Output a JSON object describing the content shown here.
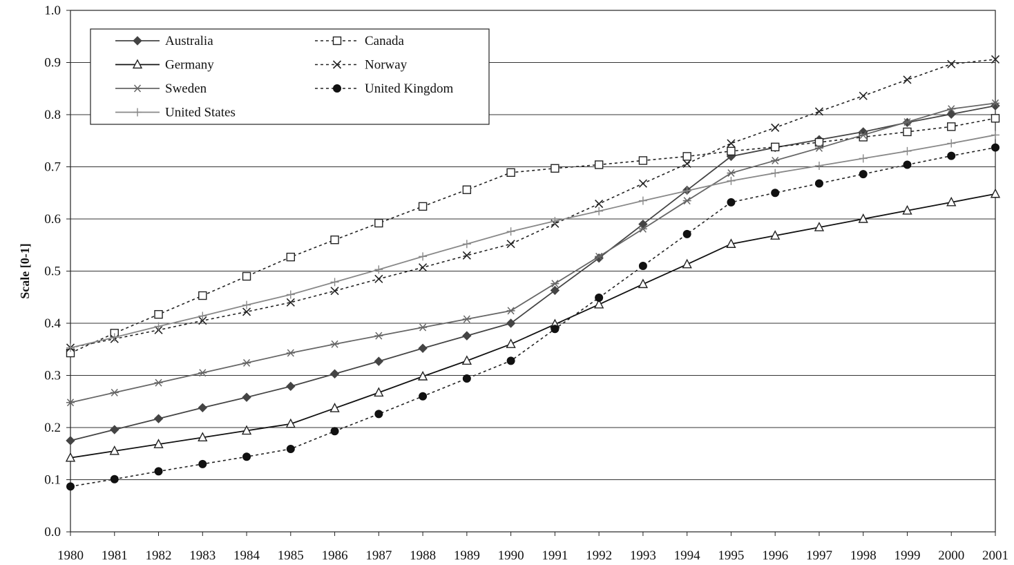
{
  "chart_data": {
    "type": "line",
    "title": "",
    "xlabel": "",
    "ylabel": "Scale [0-1]",
    "x": [
      1980,
      1981,
      1982,
      1983,
      1984,
      1985,
      1986,
      1987,
      1988,
      1989,
      1990,
      1991,
      1992,
      1993,
      1994,
      1995,
      1996,
      1997,
      1998,
      1999,
      2000,
      2001
    ],
    "x_tick_labels": [
      "1980",
      "1981",
      "1982",
      "1983",
      "1984",
      "1985",
      "1986",
      "1987",
      "1988",
      "1989",
      "1990",
      "1991",
      "1992",
      "1993",
      "1994",
      "1995",
      "1996",
      "1997",
      "1998",
      "1999",
      "2000",
      "2001"
    ],
    "ylim": [
      0,
      1
    ],
    "y_tick_labels": [
      "0.0",
      "0.1",
      "0.2",
      "0.3",
      "0.4",
      "0.5",
      "0.6",
      "0.7",
      "0.8",
      "0.9",
      "1.0"
    ],
    "grid": "horizontal",
    "legend_position": "top-left",
    "series": [
      {
        "name": "Australia",
        "color": "#444444",
        "line_style": "solid",
        "marker": "diamond",
        "values": [
          0.175,
          0.196,
          0.217,
          0.238,
          0.258,
          0.279,
          0.303,
          0.327,
          0.352,
          0.376,
          0.4,
          0.463,
          0.525,
          0.59,
          0.655,
          0.72,
          0.737,
          0.752,
          0.767,
          0.785,
          0.801,
          0.817
        ]
      },
      {
        "name": "Canada",
        "color": "#222222",
        "line_style": "dashed",
        "marker": "square-open",
        "values": [
          0.343,
          0.381,
          0.417,
          0.453,
          0.49,
          0.527,
          0.56,
          0.592,
          0.624,
          0.656,
          0.689,
          0.697,
          0.704,
          0.712,
          0.72,
          0.73,
          0.738,
          0.747,
          0.757,
          0.767,
          0.777,
          0.793
        ]
      },
      {
        "name": "Germany",
        "color": "#111111",
        "line_style": "solid",
        "marker": "triangle-open",
        "values": [
          0.142,
          0.155,
          0.168,
          0.181,
          0.194,
          0.207,
          0.237,
          0.267,
          0.298,
          0.328,
          0.36,
          0.398,
          0.436,
          0.475,
          0.513,
          0.552,
          0.568,
          0.584,
          0.6,
          0.616,
          0.632,
          0.648
        ]
      },
      {
        "name": "Norway",
        "color": "#222222",
        "line_style": "dashed",
        "marker": "x",
        "values": [
          0.353,
          0.37,
          0.387,
          0.405,
          0.422,
          0.44,
          0.462,
          0.485,
          0.507,
          0.53,
          0.552,
          0.591,
          0.629,
          0.668,
          0.706,
          0.745,
          0.775,
          0.806,
          0.836,
          0.867,
          0.897,
          0.906
        ]
      },
      {
        "name": "Sweden",
        "color": "#666666",
        "line_style": "solid",
        "marker": "asterisk",
        "values": [
          0.248,
          0.267,
          0.286,
          0.305,
          0.324,
          0.343,
          0.36,
          0.376,
          0.392,
          0.408,
          0.424,
          0.476,
          0.528,
          0.581,
          0.635,
          0.688,
          0.712,
          0.736,
          0.761,
          0.786,
          0.811,
          0.822
        ]
      },
      {
        "name": "United Kingdom",
        "color": "#222222",
        "line_style": "dashed",
        "marker": "circle-filled",
        "values": [
          0.087,
          0.101,
          0.116,
          0.13,
          0.144,
          0.159,
          0.193,
          0.226,
          0.26,
          0.294,
          0.328,
          0.389,
          0.449,
          0.51,
          0.571,
          0.632,
          0.65,
          0.668,
          0.686,
          0.704,
          0.721,
          0.737
        ]
      },
      {
        "name": "United States",
        "color": "#888888",
        "line_style": "solid",
        "marker": "plus",
        "values": [
          0.353,
          0.373,
          0.394,
          0.414,
          0.435,
          0.455,
          0.479,
          0.503,
          0.528,
          0.552,
          0.576,
          0.596,
          0.615,
          0.635,
          0.654,
          0.673,
          0.688,
          0.702,
          0.716,
          0.73,
          0.745,
          0.761
        ]
      }
    ]
  }
}
